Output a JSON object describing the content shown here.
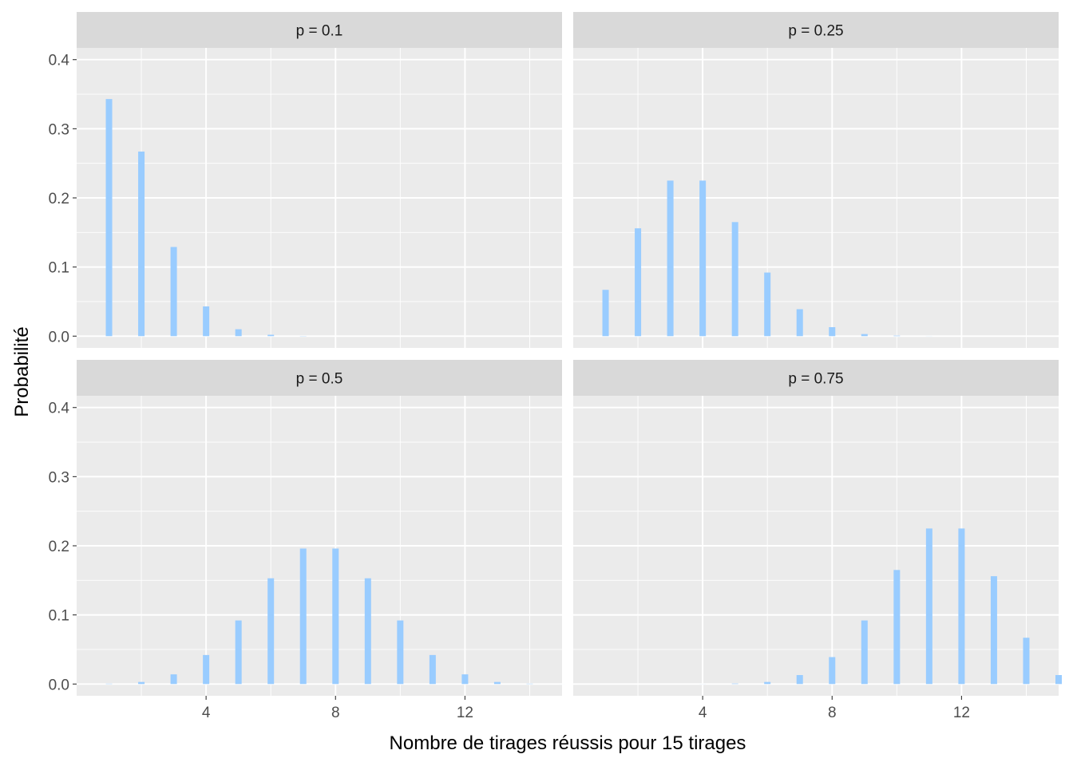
{
  "chart_data": {
    "type": "bar",
    "layout": "facet-grid-2x2",
    "xlabel": "Nombre de tirages réussis pour 15 tirages",
    "ylabel": "Probabilité",
    "x_ticks": [
      4,
      8,
      12
    ],
    "x_minor_ticks": [
      2,
      6,
      10,
      14
    ],
    "xlim": [
      0,
      15
    ],
    "y_ticks": [
      0.0,
      0.1,
      0.2,
      0.3,
      0.4
    ],
    "y_tick_labels": [
      "0.0",
      "0.1",
      "0.2",
      "0.3",
      "0.4"
    ],
    "y_minor_ticks": [
      0.05,
      0.15,
      0.25,
      0.35
    ],
    "ylim": [
      -0.017,
      0.417
    ],
    "grid": true,
    "bar_color": "#99CCFF",
    "panel_background": "#EBEBEB",
    "strip_background": "#D9D9D9",
    "gridline_color": "#FFFFFF",
    "x": [
      1,
      2,
      3,
      4,
      5,
      6,
      7,
      8,
      9,
      10,
      11,
      12,
      13,
      14,
      15
    ],
    "facets": [
      {
        "label": "p = 0.1",
        "values": [
          0.343,
          0.267,
          0.129,
          0.043,
          0.01,
          0.002,
          0.0003,
          0.0,
          0,
          0,
          0,
          0,
          0,
          0,
          0
        ]
      },
      {
        "label": "p = 0.25",
        "values": [
          0.067,
          0.156,
          0.225,
          0.225,
          0.165,
          0.092,
          0.039,
          0.013,
          0.003,
          0.0007,
          0.0001,
          0,
          0,
          0,
          0
        ]
      },
      {
        "label": "p = 0.5",
        "values": [
          0.0005,
          0.003,
          0.014,
          0.042,
          0.092,
          0.153,
          0.196,
          0.196,
          0.153,
          0.092,
          0.042,
          0.014,
          0.003,
          0.0005,
          3e-05
        ]
      },
      {
        "label": "p = 0.75",
        "values": [
          0,
          0,
          0,
          0.0001,
          0.0007,
          0.003,
          0.013,
          0.039,
          0.092,
          0.165,
          0.225,
          0.225,
          0.156,
          0.067,
          0.013
        ]
      }
    ]
  }
}
